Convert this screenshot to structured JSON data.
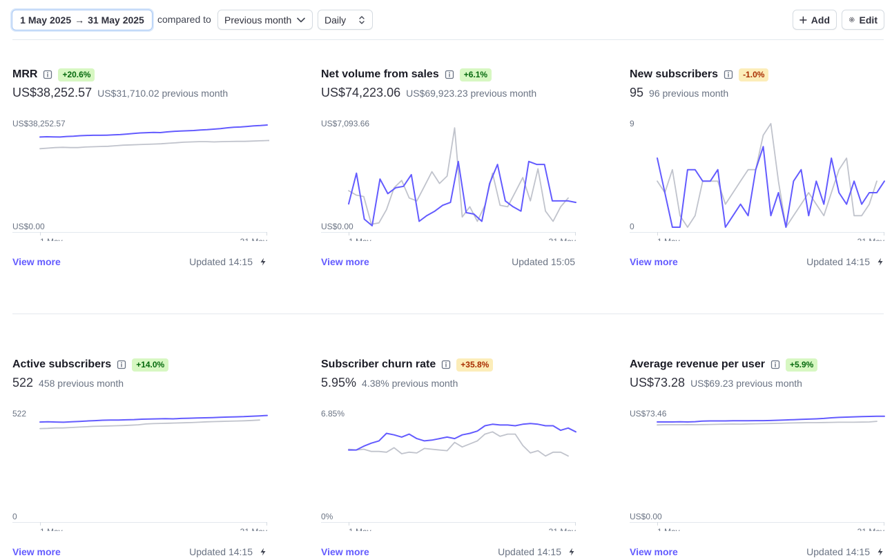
{
  "toolbar": {
    "date_start": "1 May 2025",
    "arrow": "→",
    "date_end": "31 May 2025",
    "compared_label": "compared to",
    "comparison_value": "Previous month",
    "interval_value": "Daily",
    "add_label": "Add",
    "edit_label": "Edit"
  },
  "colors": {
    "current": "#635bff",
    "previous": "#c0c3cc",
    "positive_badge": "#d7f7c2",
    "negative_badge": "#fcedb9"
  },
  "cards": [
    {
      "title": "MRR",
      "badge": "+20.6%",
      "badge_type": "positive",
      "value": "US$38,252.57",
      "previous": "US$31,710.02 previous month",
      "y_top_label": "US$38,252.57",
      "y_bottom_label": "US$0.00",
      "x_start": "1 May",
      "x_end": "31 May",
      "view_more": "View more",
      "updated": "Updated 14:15",
      "show_bolt": true,
      "chart_data": {
        "type": "line",
        "ylim": [
          0,
          38252.57
        ],
        "series": [
          {
            "values": [
              33300,
              33400,
              33350,
              33300,
              33500,
              33600,
              33800,
              33900,
              33950,
              33950,
              34000,
              34100,
              34200,
              34400,
              34600,
              34800,
              34900,
              35000,
              34950,
              35200,
              35400,
              35500,
              35600,
              35700,
              35900,
              36000,
              36200,
              36400,
              36700,
              36900,
              37000,
              37200,
              37400,
              37550,
              37750
            ]
          },
          {
            "values": [
              29000,
              29200,
              29400,
              29500,
              29400,
              29400,
              29600,
              29700,
              29800,
              29900,
              30100,
              30300,
              30400,
              30500,
              30600,
              30700,
              30800,
              31000,
              31200,
              31400,
              31500,
              31600,
              31600,
              31500,
              31600,
              31650,
              31700,
              31700,
              31800,
              31900,
              32000,
              32050,
              32100,
              32200,
              32400
            ]
          }
        ]
      }
    },
    {
      "title": "Net volume from sales",
      "badge": "+6.1%",
      "badge_type": "positive",
      "value": "US$74,223.06",
      "previous": "US$69,923.23 previous month",
      "y_top_label": "US$7,093.66",
      "y_bottom_label": "US$0.00",
      "x_start": "1 May",
      "x_end": "31 May",
      "view_more": "View more",
      "updated": "Updated 15:05",
      "show_bolt": false,
      "chart_data": {
        "type": "line",
        "ylim": [
          0,
          7093.66
        ],
        "series": [
          {
            "values": [
              1600,
              3700,
              550,
              100,
              3300,
              2300,
              2700,
              2800,
              3600,
              400,
              800,
              1100,
              1500,
              1700,
              4500,
              1000,
              900,
              400,
              3000,
              4300,
              1800,
              1400,
              1100,
              4500,
              4300,
              4300,
              1800,
              1800,
              1800,
              1700
            ]
          },
          {
            "values": [
              2500,
              2200,
              2100,
              200,
              300,
              1200,
              2700,
              3200,
              2000,
              1800,
              2800,
              3800,
              3000,
              3500,
              6800,
              700,
              1400,
              400,
              1500,
              3700,
              1500,
              1400,
              2400,
              3400,
              1800,
              4000,
              1100,
              400,
              1400,
              2000
            ]
          }
        ]
      }
    },
    {
      "title": "New subscribers",
      "badge": "-1.0%",
      "badge_type": "negative",
      "value": "95",
      "previous": "96 previous month",
      "y_top_label": "9",
      "y_bottom_label": "0",
      "x_start": "1 May",
      "x_end": "31 May",
      "view_more": "View more",
      "updated": "Updated 14:15",
      "show_bolt": true,
      "chart_data": {
        "type": "line",
        "ylim": [
          0,
          9
        ],
        "series": [
          {
            "values": [
              6,
              3,
              0,
              0,
              5,
              5,
              4,
              4,
              5,
              0,
              1,
              2,
              1,
              5,
              7,
              1,
              3,
              0,
              4,
              5,
              1,
              4,
              2,
              6,
              3,
              2,
              4,
              2,
              3,
              3,
              4
            ]
          },
          {
            "values": [
              4,
              3,
              5,
              1,
              0,
              1,
              4,
              4,
              4,
              2,
              3,
              4,
              5,
              5,
              8,
              9,
              4,
              0,
              1,
              2,
              3,
              2,
              1,
              3,
              5,
              6,
              1,
              1,
              2,
              4
            ]
          }
        ]
      }
    },
    {
      "title": "Active subscribers",
      "badge": "+14.0%",
      "badge_type": "positive",
      "value": "522",
      "previous": "458 previous month",
      "y_top_label": "522",
      "y_bottom_label": "0",
      "x_start": "1 May",
      "x_end": "31 May",
      "view_more": "View more",
      "updated": "Updated 14:15",
      "show_bolt": true,
      "chart_data": {
        "type": "line",
        "ylim": [
          0,
          522
        ],
        "series": [
          {
            "values": [
              480,
              481,
              480,
              479,
              481,
              483,
              485,
              487,
              489,
              490,
              490,
              491,
              492,
              494,
              495,
              496,
              497,
              496,
              498,
              499,
              500,
              501,
              502,
              504,
              505,
              506,
              507,
              509,
              511,
              513
            ]
          },
          {
            "values": [
              447,
              448,
              450,
              450,
              452,
              454,
              456,
              458,
              459,
              460,
              461,
              462,
              464,
              466,
              470,
              472,
              473,
              474,
              475,
              476,
              477,
              479,
              481,
              482,
              483,
              484,
              485,
              486,
              488,
              490
            ]
          }
        ]
      }
    },
    {
      "title": "Subscriber churn rate",
      "badge": "+35.8%",
      "badge_type": "negative",
      "value": "5.95%",
      "previous": "4.38% previous month",
      "y_top_label": "6.85%",
      "y_bottom_label": "0%",
      "x_start": "1 May",
      "x_end": "31 May",
      "view_more": "View more",
      "updated": "Updated 14:15",
      "show_bolt": true,
      "chart_data": {
        "type": "line",
        "ylim": [
          0,
          6.85
        ],
        "series": [
          {
            "values": [
              4.45,
              4.45,
              4.7,
              4.9,
              5.05,
              5.55,
              5.45,
              5.3,
              5.5,
              5.2,
              5.05,
              5.1,
              5.2,
              5.3,
              5.2,
              5.45,
              5.55,
              5.7,
              6.05,
              6.15,
              6.1,
              6.1,
              6.05,
              6.15,
              6.2,
              6.15,
              6.05,
              6.05,
              5.75,
              5.9,
              5.65
            ]
          },
          {
            "values": [
              4.5,
              4.45,
              4.5,
              4.35,
              4.35,
              4.3,
              4.6,
              4.2,
              4.3,
              4.25,
              4.55,
              4.5,
              4.45,
              4.4,
              4.95,
              4.65,
              4.85,
              5.05,
              5.5,
              5.65,
              5.35,
              5.5,
              5.5,
              4.75,
              4.25,
              4.4,
              4.05,
              4.3,
              4.3,
              4.05
            ]
          }
        ]
      }
    },
    {
      "title": "Average revenue per user",
      "badge": "+5.9%",
      "badge_type": "positive",
      "value": "US$73.28",
      "previous": "US$69.23 previous month",
      "y_top_label": "US$73.46",
      "y_bottom_label": "US$0.00",
      "x_start": "1 May",
      "x_end": "31 May",
      "view_more": "View more",
      "updated": "Updated 14:15",
      "show_bolt": true,
      "chart_data": {
        "type": "line",
        "ylim": [
          0,
          73.46
        ],
        "series": [
          {
            "values": [
              67.6,
              67.6,
              67.6,
              67.7,
              67.6,
              67.8,
              68.2,
              68.3,
              68.3,
              68.3,
              68.4,
              68.4,
              68.4,
              68.5,
              68.5,
              68.6,
              68.8,
              69.0,
              69.2,
              69.4,
              69.6,
              69.8,
              70.1,
              70.5,
              70.8,
              71.0,
              71.2,
              71.4,
              71.5,
              71.6,
              71.6
            ]
          },
          {
            "values": [
              65.5,
              65.6,
              65.6,
              65.6,
              65.7,
              65.6,
              65.7,
              65.8,
              65.9,
              66.0,
              66.1,
              66.0,
              66.2,
              66.3,
              66.4,
              66.5,
              66.6,
              66.8,
              66.9,
              67.0,
              67.1,
              67.1,
              67.2,
              67.3,
              67.4,
              67.4,
              67.4,
              67.5,
              67.6,
              68.0
            ]
          }
        ]
      }
    }
  ]
}
